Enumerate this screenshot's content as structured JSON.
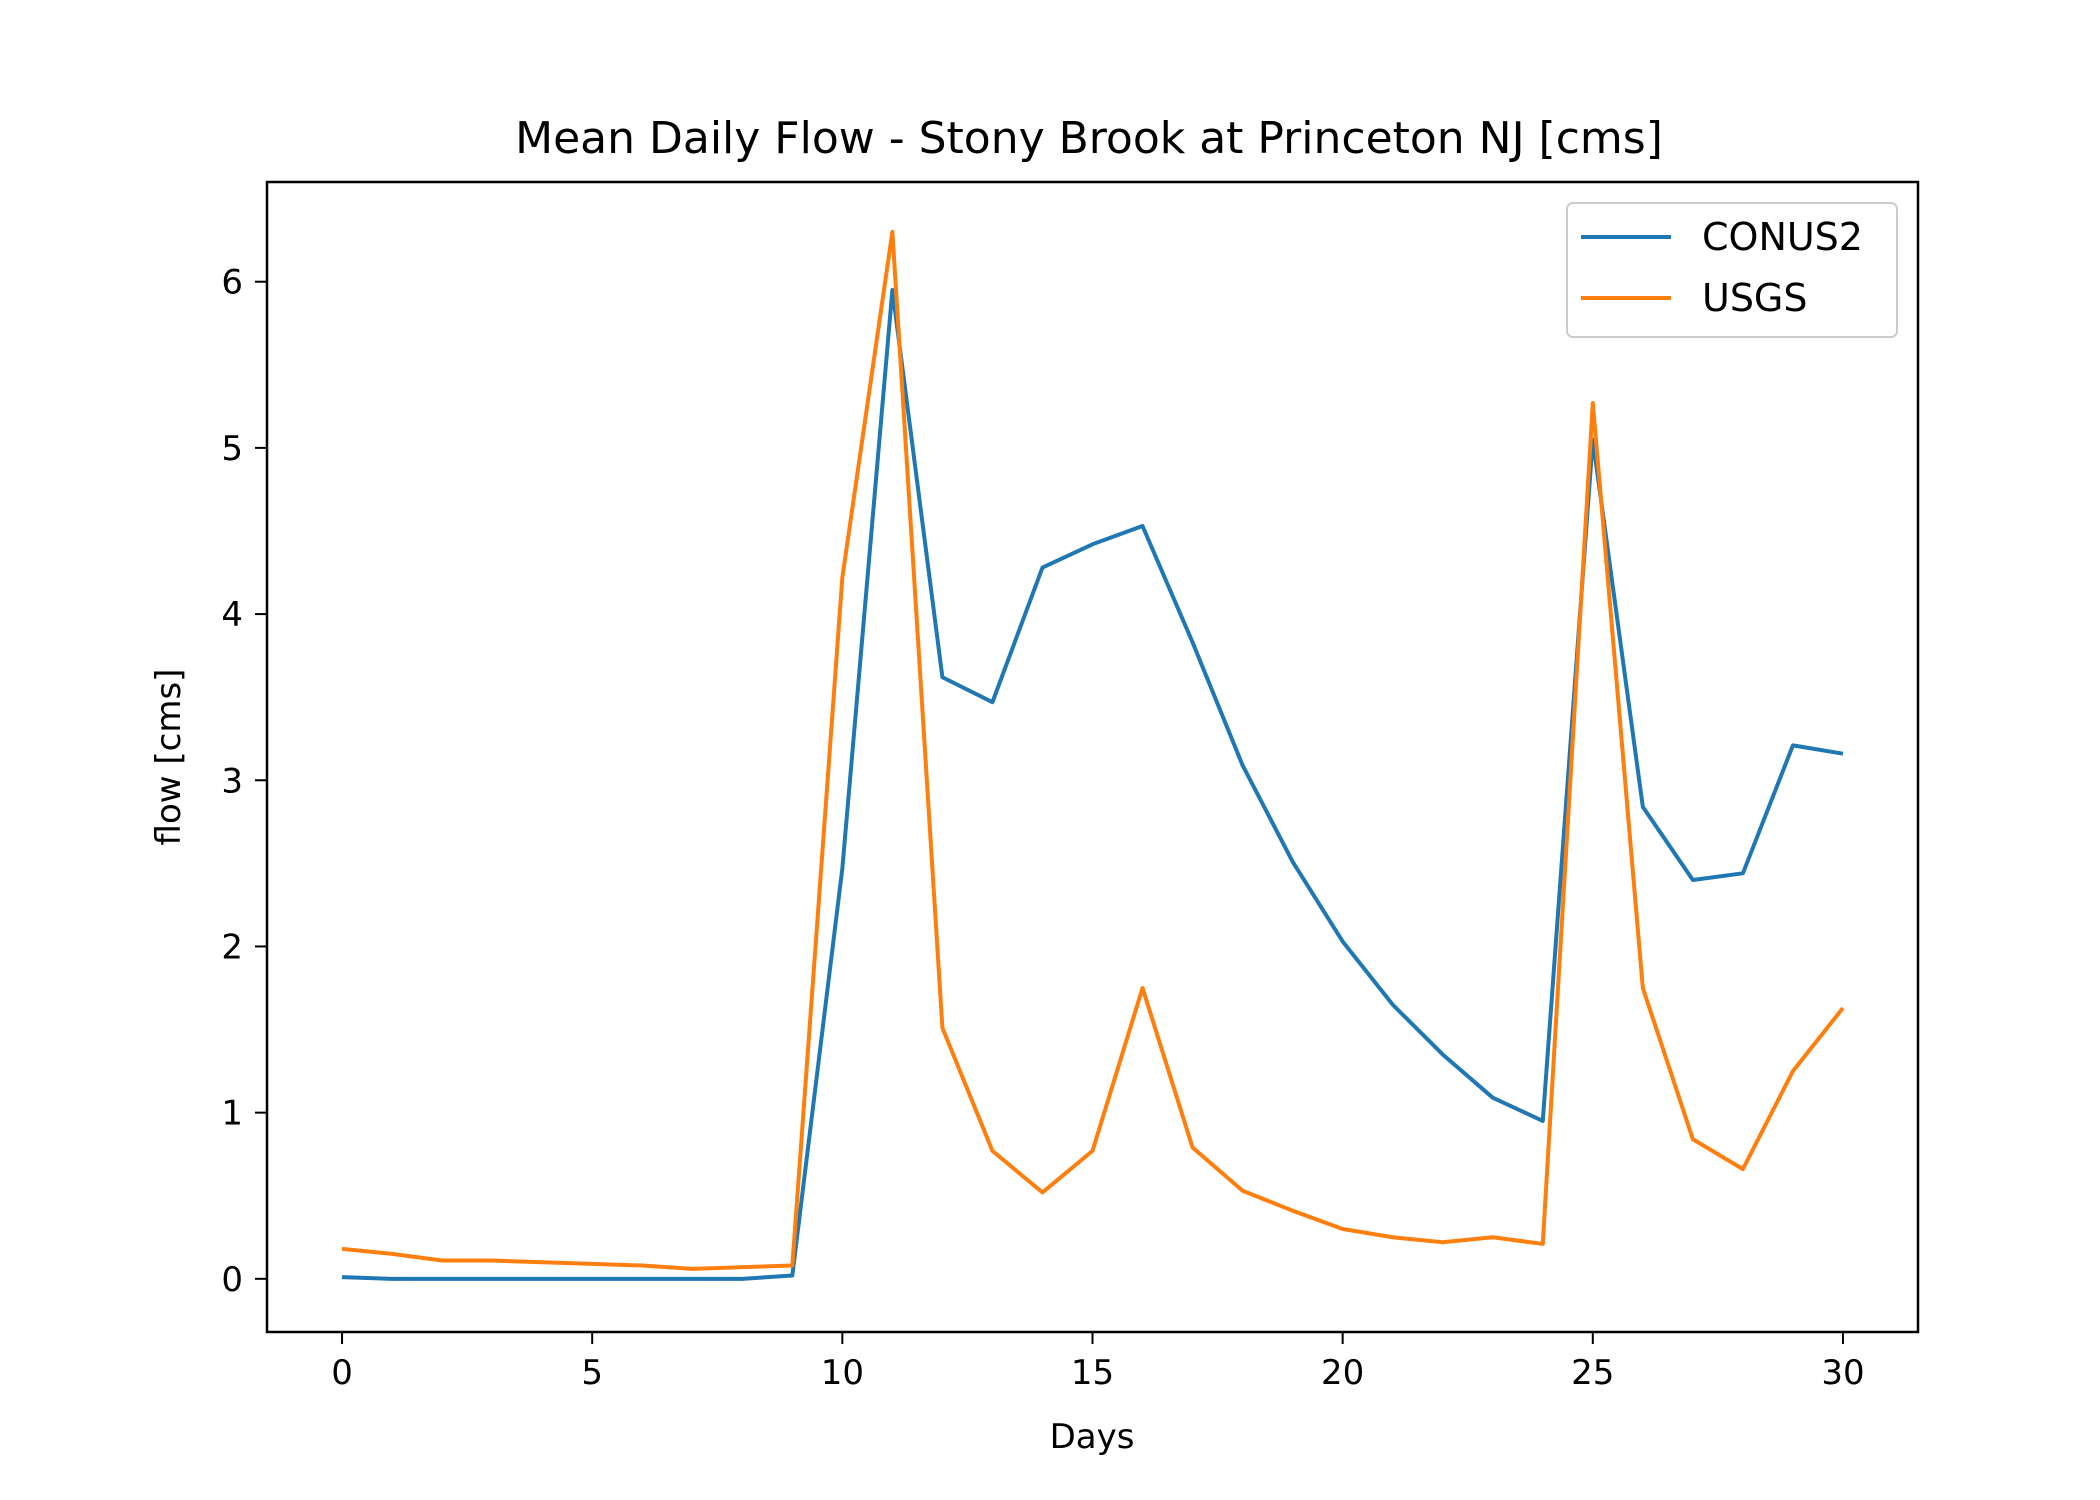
{
  "chart_data": {
    "type": "line",
    "title": "Mean Daily Flow - Stony Brook at Princeton NJ [cms]",
    "xlabel": "Days",
    "ylabel": "flow [cms]",
    "xlim": [
      -1.5,
      31.5
    ],
    "ylim": [
      -0.32,
      6.6
    ],
    "xticks": [
      0,
      5,
      10,
      15,
      20,
      25,
      30
    ],
    "yticks": [
      0,
      1,
      2,
      3,
      4,
      5,
      6
    ],
    "grid": false,
    "legend_position": "upper right",
    "x": [
      0,
      1,
      2,
      3,
      4,
      5,
      6,
      7,
      8,
      9,
      10,
      11,
      12,
      13,
      14,
      15,
      16,
      17,
      18,
      19,
      20,
      21,
      22,
      23,
      24,
      25,
      26,
      27,
      28,
      29,
      30
    ],
    "series": [
      {
        "name": "CONUS2",
        "color": "#1f77b4",
        "values": [
          0.01,
          0.0,
          0.0,
          0.0,
          0.0,
          0.0,
          0.0,
          0.0,
          0.0,
          0.02,
          2.47,
          5.95,
          3.62,
          3.47,
          4.28,
          4.42,
          4.53,
          3.83,
          3.09,
          2.51,
          2.03,
          1.65,
          1.35,
          1.09,
          0.95,
          5.05,
          2.84,
          2.4,
          2.44,
          3.21,
          3.16
        ]
      },
      {
        "name": "USGS",
        "color": "#ff7f0e",
        "values": [
          0.18,
          0.15,
          0.11,
          0.11,
          0.1,
          0.09,
          0.08,
          0.06,
          0.07,
          0.08,
          4.22,
          6.3,
          1.51,
          0.77,
          0.52,
          0.77,
          1.75,
          0.79,
          0.53,
          0.41,
          0.3,
          0.25,
          0.22,
          0.25,
          0.21,
          5.27,
          1.75,
          0.84,
          0.66,
          1.25,
          1.63
        ]
      }
    ]
  }
}
